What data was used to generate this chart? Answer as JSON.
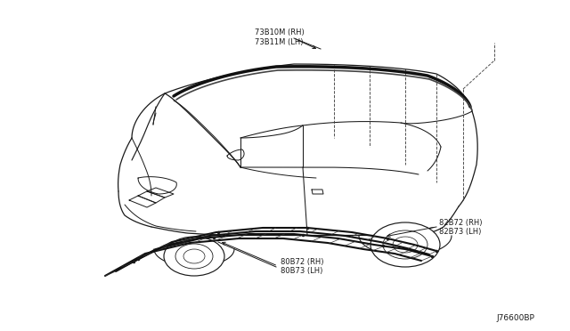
{
  "bg_color": "#ffffff",
  "line_color": "#1a1a1a",
  "label_color": "#1a1a1a",
  "diagram_code": "J76600BP",
  "labels": {
    "top_part1": "73B10M (RH)",
    "top_part2": "73B11M (LH)",
    "mid_part1": "82B72 (RH)",
    "mid_part2": "82B73 (LH)",
    "bot_part1": "80B72 (RH)",
    "bot_part2": "80B73 (LH)"
  },
  "font_size_label": 6.0,
  "font_size_code": 6.5
}
